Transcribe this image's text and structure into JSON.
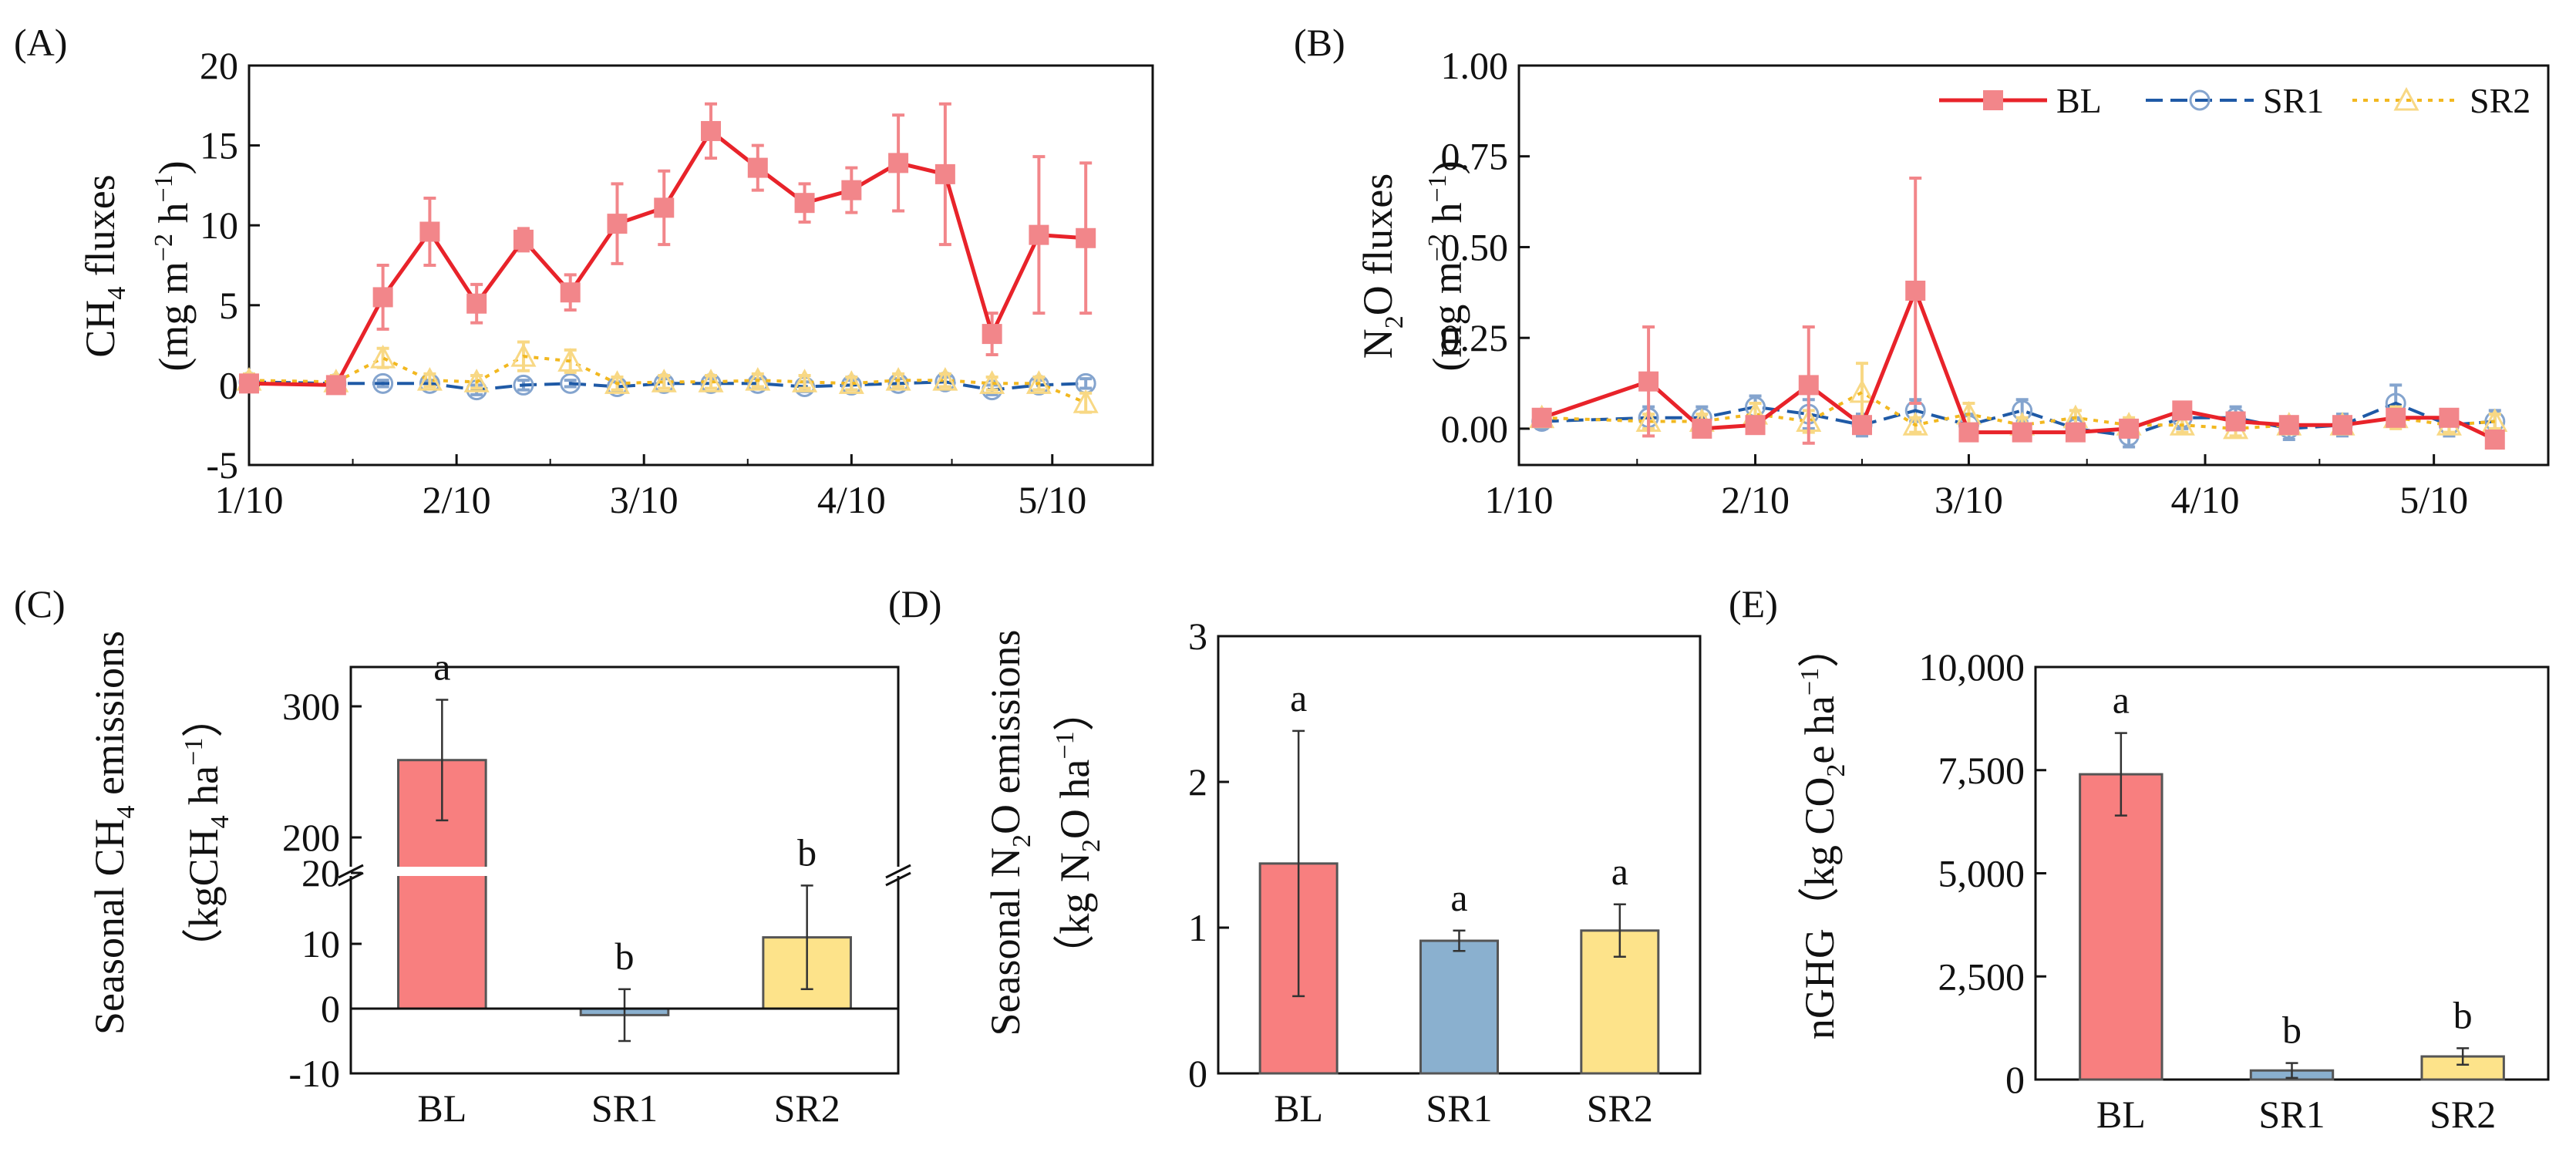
{
  "figure": {
    "panels": {
      "A": {
        "label": "(A)"
      },
      "B": {
        "label": "(B)"
      },
      "C": {
        "label": "(C)"
      },
      "D": {
        "label": "(D)"
      },
      "E": {
        "label": "(E)"
      }
    }
  },
  "chart_data": [
    {
      "id": "A",
      "type": "line",
      "title": "",
      "ylabel": "CH4 fluxes (mg m^-2 h^-1)",
      "ylabel_line1": "CH",
      "ylabel_line1_sub": "4",
      "ylabel_line1_tail": " fluxes",
      "ylabel_line2": "(mg m",
      "ylabel_line2_sup1": "−2",
      "ylabel_line2_mid": " h",
      "ylabel_line2_sup2": "−1",
      "ylabel_line2_tail": ")",
      "xlabel": "",
      "x_tick_labels": [
        "1/10",
        "2/10",
        "3/10",
        "4/10",
        "5/10"
      ],
      "x_ticks": [
        0,
        31,
        59,
        90,
        120
      ],
      "xlim": [
        0,
        135
      ],
      "ylim": [
        -5,
        20
      ],
      "y_ticks": [
        -5,
        0,
        5,
        10,
        15,
        20
      ],
      "y_tick_labels": [
        "-5",
        "0",
        "5",
        "10",
        "15",
        "20"
      ],
      "series": [
        {
          "name": "BL",
          "color": "#e8232a",
          "marker": "square",
          "x": [
            0,
            13,
            20,
            27,
            34,
            41,
            48,
            55,
            62,
            69,
            76,
            83,
            90,
            97,
            104,
            111,
            118,
            125,
            132
          ],
          "values": [
            0.1,
            0.0,
            5.5,
            9.6,
            5.1,
            9.1,
            5.8,
            10.1,
            11.1,
            15.9,
            13.6,
            11.4,
            12.2,
            13.9,
            13.2,
            3.2,
            9.4,
            9.2,
            null
          ],
          "errors": [
            0,
            0,
            2.0,
            2.1,
            1.2,
            0.7,
            1.1,
            2.5,
            2.3,
            1.7,
            1.4,
            1.2,
            1.4,
            3.0,
            4.4,
            1.3,
            4.9,
            4.7,
            0
          ]
        },
        {
          "name": "SR1",
          "color": "#1f5aa6",
          "marker": "circle",
          "x": [
            0,
            13,
            20,
            27,
            34,
            41,
            48,
            55,
            62,
            69,
            76,
            83,
            90,
            97,
            104,
            111,
            118,
            125,
            132
          ],
          "values": [
            0.2,
            0.1,
            0.1,
            0.1,
            -0.3,
            0.0,
            0.1,
            -0.1,
            0.1,
            0.1,
            0.1,
            -0.1,
            0.0,
            0.1,
            0.2,
            -0.3,
            0.0,
            0.1,
            null
          ],
          "errors": [
            0.2,
            0.2,
            0.2,
            0.2,
            0.3,
            0.3,
            0.2,
            0.3,
            0.3,
            0.3,
            0.3,
            0.3,
            0.3,
            0.3,
            0.3,
            0.3,
            0.3,
            0.3,
            0
          ]
        },
        {
          "name": "SR2",
          "color": "#f2b820",
          "marker": "triangle",
          "x": [
            0,
            13,
            20,
            27,
            34,
            41,
            48,
            55,
            62,
            69,
            76,
            83,
            90,
            97,
            104,
            111,
            118,
            125,
            132
          ],
          "values": [
            0.3,
            0.2,
            1.7,
            0.3,
            0.2,
            1.8,
            1.5,
            0.1,
            0.2,
            0.2,
            0.3,
            0.2,
            0.1,
            0.3,
            0.3,
            0.1,
            0.1,
            -1.1,
            null
          ],
          "errors": [
            0.4,
            0.4,
            0.6,
            0.4,
            0.4,
            0.9,
            0.7,
            0.4,
            0.4,
            0.4,
            0.4,
            0.4,
            0.4,
            0.4,
            0.4,
            0.4,
            0.4,
            0.6,
            0
          ]
        }
      ]
    },
    {
      "id": "B",
      "type": "line",
      "title": "",
      "ylabel": "N2O fluxes (mg m^-2 h^-1)",
      "ylabel_line1": "N",
      "ylabel_line1_sub": "2",
      "ylabel_line1_tail": "O fluxes",
      "ylabel_line2": "(mg m",
      "ylabel_line2_sup1": "−2",
      "ylabel_line2_mid": " h",
      "ylabel_line2_sup2": "−1",
      "ylabel_line2_tail": ")",
      "xlabel": "",
      "x_tick_labels": [
        "1/10",
        "2/10",
        "3/10",
        "4/10",
        "5/10"
      ],
      "x_ticks": [
        0,
        31,
        59,
        90,
        120
      ],
      "xlim": [
        0,
        135
      ],
      "ylim": [
        -0.1,
        1.0
      ],
      "y_ticks": [
        0.0,
        0.25,
        0.5,
        0.75,
        1.0
      ],
      "y_tick_labels": [
        "0.00",
        "0.25",
        "0.50",
        "0.75",
        "1.00"
      ],
      "legend": [
        "BL",
        "SR1",
        "SR2"
      ],
      "legend_position": "top-right",
      "series": [
        {
          "name": "BL",
          "color": "#e8232a",
          "marker": "square",
          "x": [
            3,
            17,
            24,
            31,
            38,
            45,
            52,
            59,
            66,
            73,
            80,
            87,
            94,
            101,
            108,
            115,
            122,
            128,
            132
          ],
          "values": [
            0.03,
            0.13,
            0.0,
            0.01,
            0.12,
            0.01,
            0.38,
            -0.01,
            -0.01,
            -0.01,
            0.0,
            0.05,
            0.02,
            0.01,
            0.01,
            0.03,
            0.03,
            -0.03,
            null
          ],
          "errors": [
            0.02,
            0.15,
            0.02,
            0.02,
            0.16,
            0.02,
            0.31,
            0.02,
            0.02,
            0.02,
            0.02,
            0.02,
            0.02,
            0.02,
            0.02,
            0.02,
            0.02,
            0.02,
            0
          ]
        },
        {
          "name": "SR1",
          "color": "#1f5aa6",
          "marker": "circle",
          "x": [
            3,
            17,
            24,
            31,
            38,
            45,
            52,
            59,
            66,
            73,
            80,
            87,
            94,
            101,
            108,
            115,
            122,
            128,
            132
          ],
          "values": [
            0.02,
            0.03,
            0.03,
            0.06,
            0.04,
            0.01,
            0.05,
            0.01,
            0.05,
            0.0,
            -0.02,
            0.03,
            0.03,
            0.0,
            0.01,
            0.07,
            0.01,
            0.02,
            null
          ],
          "errors": [
            0.02,
            0.03,
            0.03,
            0.03,
            0.04,
            0.03,
            0.03,
            0.03,
            0.03,
            0.03,
            0.03,
            0.03,
            0.03,
            0.03,
            0.03,
            0.05,
            0.03,
            0.03,
            0
          ]
        },
        {
          "name": "SR2",
          "color": "#f2b820",
          "marker": "triangle",
          "x": [
            3,
            17,
            24,
            31,
            38,
            45,
            52,
            59,
            66,
            73,
            80,
            87,
            94,
            101,
            108,
            115,
            122,
            128,
            132
          ],
          "values": [
            0.03,
            0.02,
            0.02,
            0.04,
            0.02,
            0.1,
            0.01,
            0.04,
            0.01,
            0.03,
            0.01,
            0.01,
            0.0,
            0.01,
            0.01,
            0.03,
            0.01,
            0.02,
            null
          ],
          "errors": [
            0.02,
            0.02,
            0.02,
            0.03,
            0.03,
            0.08,
            0.02,
            0.03,
            0.02,
            0.02,
            0.02,
            0.02,
            0.02,
            0.02,
            0.02,
            0.03,
            0.02,
            0.02,
            0
          ]
        }
      ]
    },
    {
      "id": "C",
      "type": "bar",
      "title": "",
      "ylabel": "Seasonal CH4 emissions (kgCH4 ha^-1)",
      "ylabel_line1": "Seasonal CH",
      "ylabel_line1_sub": "4",
      "ylabel_line1_tail": " emissions",
      "ylabel_line2": "（kgCH",
      "ylabel_line2_sub": "4",
      "ylabel_line2_mid": " ha",
      "ylabel_line2_sup": "−1",
      "ylabel_line2_tail": "）",
      "categories": [
        "BL",
        "SR1",
        "SR2"
      ],
      "values": [
        259,
        -1,
        11
      ],
      "errors": [
        46,
        4,
        8
      ],
      "letters": [
        "a",
        "b",
        "b"
      ],
      "colors": [
        "#f87f7f",
        "#8ab0cf",
        "#fde38a"
      ],
      "axis_break": [
        20,
        180
      ],
      "ylim": [
        -10,
        330
      ],
      "y_tick_labels": [
        "-10",
        "0",
        "10",
        "20",
        "200",
        "300"
      ]
    },
    {
      "id": "D",
      "type": "bar",
      "title": "",
      "ylabel": "Seasonal N2O emissions (kg N2O ha^-1)",
      "ylabel_line1": "Seasonal N",
      "ylabel_line1_sub": "2",
      "ylabel_line1_tail": "O emissions",
      "ylabel_line2": "（kg N",
      "ylabel_line2_sub": "2",
      "ylabel_line2_mid": "O ha",
      "ylabel_line2_sup": "−1",
      "ylabel_line2_tail": "）",
      "categories": [
        "BL",
        "SR1",
        "SR2"
      ],
      "values": [
        1.44,
        0.91,
        0.98
      ],
      "errors": [
        0.91,
        0.07,
        0.18
      ],
      "letters": [
        "a",
        "a",
        "a"
      ],
      "colors": [
        "#f87f7f",
        "#8ab0cf",
        "#fde38a"
      ],
      "ylim": [
        0,
        3
      ],
      "y_ticks": [
        0,
        1,
        2,
        3
      ],
      "y_tick_labels": [
        "0",
        "1",
        "2",
        "3"
      ]
    },
    {
      "id": "E",
      "type": "bar",
      "title": "",
      "ylabel": "nGHG (kg CO2e ha^-1)",
      "ylabel_line1": "nGHG（kg CO",
      "ylabel_line1_sub": "2",
      "ylabel_line1_mid": "e ha",
      "ylabel_line1_sup": "−1",
      "ylabel_line1_tail": "）",
      "categories": [
        "BL",
        "SR1",
        "SR2"
      ],
      "values": [
        7400,
        220,
        560
      ],
      "errors": [
        1000,
        180,
        200
      ],
      "letters": [
        "a",
        "b",
        "b"
      ],
      "colors": [
        "#f87f7f",
        "#8ab0cf",
        "#fde38a"
      ],
      "ylim": [
        0,
        10000
      ],
      "y_ticks": [
        0,
        2500,
        5000,
        7500,
        10000
      ],
      "y_tick_labels": [
        "0",
        "2,500",
        "5,000",
        "7,500",
        "10,000"
      ]
    }
  ]
}
